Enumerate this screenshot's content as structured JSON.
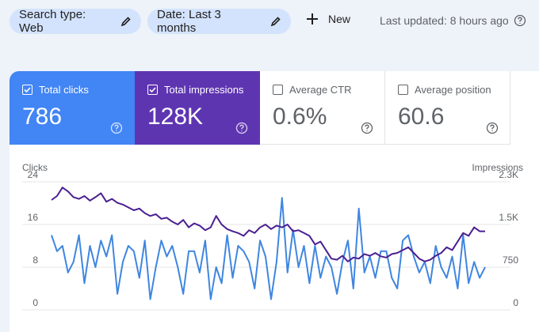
{
  "filters": [
    {
      "label": "Search type: Web"
    },
    {
      "label": "Date: Last 3 months"
    }
  ],
  "new_button": "New",
  "last_updated": "Last updated: 8 hours ago",
  "metrics": [
    {
      "label": "Total clicks",
      "value": "786",
      "selected": true
    },
    {
      "label": "Total impressions",
      "value": "128K",
      "selected": true
    },
    {
      "label": "Average CTR",
      "value": "0.6%",
      "selected": false
    },
    {
      "label": "Average position",
      "value": "60.6",
      "selected": false
    }
  ],
  "chart_data": {
    "type": "line",
    "ylabel": "Clicks",
    "y2label": "Impressions",
    "categories": [
      null,
      null,
      null,
      null,
      null,
      null,
      null,
      null,
      null,
      null,
      null,
      null,
      null,
      null,
      null,
      null,
      null,
      null,
      null,
      null,
      null,
      null,
      null,
      null,
      null,
      null,
      null,
      null,
      null,
      null,
      null,
      null,
      null,
      null,
      null,
      null,
      null,
      null,
      null,
      null,
      null,
      null,
      null,
      null,
      null,
      null,
      null,
      null,
      null,
      null,
      null,
      null,
      null,
      null,
      null,
      null,
      null,
      null,
      null,
      null,
      null,
      null,
      null,
      null,
      null,
      null,
      null,
      null,
      null,
      null,
      null,
      null,
      null,
      null,
      null,
      null,
      null,
      null,
      null,
      null
    ],
    "series": [
      {
        "color": "#3f86e0",
        "values": [
          14,
          11,
          12,
          7,
          9,
          14,
          5,
          12,
          8,
          13,
          10,
          14,
          3,
          9,
          12,
          11,
          6,
          13,
          2,
          8,
          13,
          10,
          12,
          8,
          3,
          11,
          11,
          7,
          13,
          2,
          8,
          5,
          14,
          6,
          12,
          11,
          9,
          4,
          13,
          10,
          2,
          9,
          21,
          7,
          15,
          8,
          12,
          5,
          12,
          6,
          10,
          8,
          3,
          9,
          13,
          4,
          19,
          7,
          10,
          6,
          11,
          11,
          6,
          4,
          13,
          14,
          10,
          7,
          9,
          5,
          12,
          8,
          6,
          10,
          4,
          14,
          5,
          9,
          6,
          8
        ]
      },
      {
        "color": "#4b1f91",
        "axis": "y2",
        "values": [
          1930,
          2000,
          2150,
          2080,
          1980,
          1950,
          2000,
          1920,
          1980,
          2050,
          1900,
          1950,
          1880,
          1850,
          1800,
          1750,
          1780,
          1700,
          1650,
          1680,
          1600,
          1620,
          1550,
          1500,
          1580,
          1450,
          1520,
          1480,
          1400,
          1450,
          1650,
          1500,
          1420,
          1380,
          1350,
          1300,
          1400,
          1350,
          1450,
          1500,
          1420,
          1480,
          1450,
          1500,
          1380,
          1400,
          1350,
          1300,
          1150,
          1200,
          1050,
          900,
          880,
          950,
          850,
          920,
          900,
          980,
          950,
          1000,
          940,
          920,
          980,
          1000,
          1050,
          1100,
          1000,
          900,
          850,
          880,
          950,
          1000,
          1100,
          1050,
          1200,
          1350,
          1300,
          1450,
          1380,
          1380
        ]
      }
    ],
    "ylim": [
      0,
      24
    ],
    "yticks": [
      0,
      8,
      16,
      24
    ],
    "y2lim": [
      0,
      2250
    ],
    "y2ticks": [
      0,
      750,
      {
        "value": 1500,
        "label": "1.5K"
      },
      {
        "value": 2250,
        "label": "2.3K"
      }
    ],
    "grid": true
  }
}
